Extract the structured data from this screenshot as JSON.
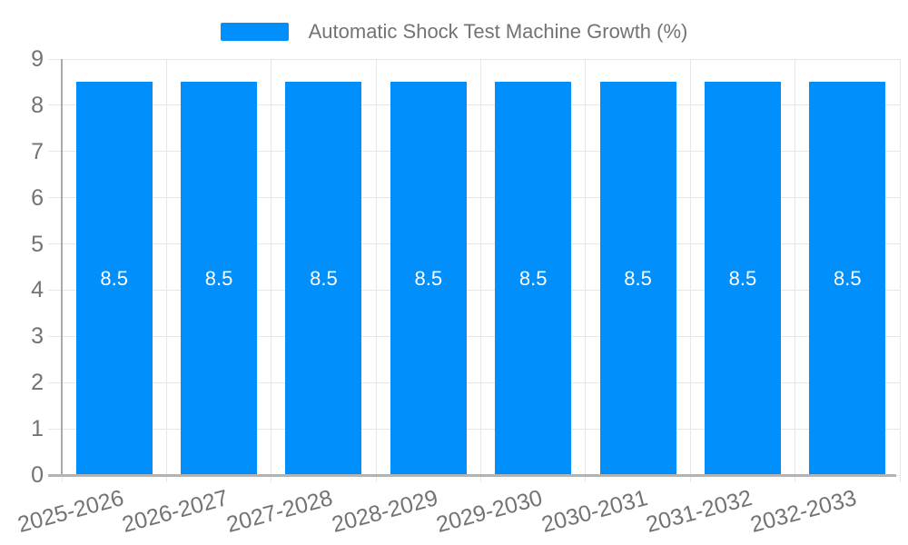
{
  "legend": {
    "label": "Automatic Shock Test Machine Growth (%)"
  },
  "colors": {
    "bar": "#008FFB",
    "grid": "#e7e7e7",
    "y_axis_line": "#a9a9a9",
    "x_axis_line": "#b3b3b3",
    "axis_text": "#737373",
    "value_text": "#ffffff",
    "background": "#ffffff"
  },
  "chart_data": {
    "type": "bar",
    "title": "Automatic Shock Test Machine Growth (%)",
    "categories": [
      "2025-2026",
      "2026-2027",
      "2027-2028",
      "2028-2029",
      "2029-2030",
      "2030-2031",
      "2031-2032",
      "2032-2033"
    ],
    "values": [
      8.5,
      8.5,
      8.5,
      8.5,
      8.5,
      8.5,
      8.5,
      8.5
    ],
    "value_labels": [
      "8.5",
      "8.5",
      "8.5",
      "8.5",
      "8.5",
      "8.5",
      "8.5",
      "8.5"
    ],
    "xlabel": "",
    "ylabel": "",
    "ylim": [
      0,
      9
    ],
    "yticks": [
      0,
      1,
      2,
      3,
      4,
      5,
      6,
      7,
      8,
      9
    ],
    "grid": true,
    "legend_position": "top",
    "value_label_position": "center"
  }
}
